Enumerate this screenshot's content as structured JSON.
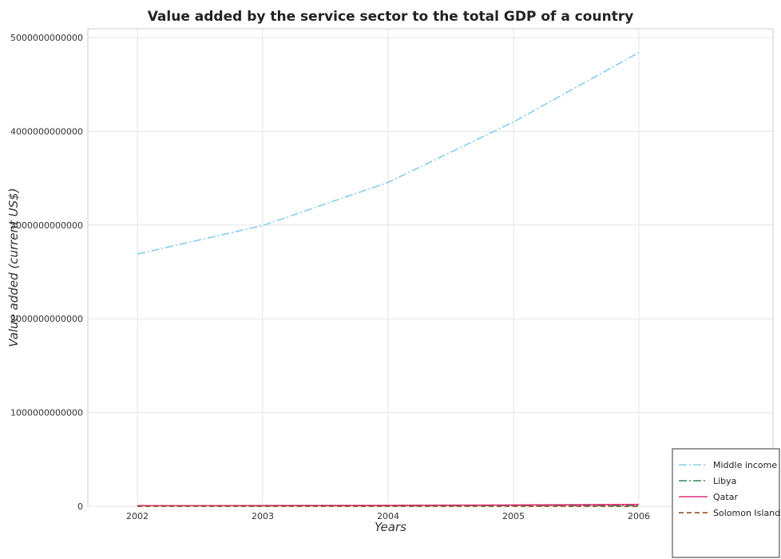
{
  "chart_data": {
    "type": "line",
    "title": "Value added by the service sector to the total GDP of a country",
    "xlabel": "Years",
    "ylabel": "Value added (current US$)",
    "categories": [
      "2002",
      "2003",
      "2004",
      "2005",
      "2006"
    ],
    "ylim": [
      0,
      5000000000000
    ],
    "yticks": [
      0,
      1000000000000,
      2000000000000,
      3000000000000,
      4000000000000,
      5000000000000
    ],
    "ytick_labels": [
      "0",
      "1000000000000",
      "2000000000000",
      "3000000000000",
      "4000000000000",
      "5000000000000"
    ],
    "grid": true,
    "legend_position": "bottom-right",
    "series": [
      {
        "name": "Middle income",
        "color": "#87ceeb",
        "dash": "dash-dot",
        "values": [
          2690000000000,
          2995000000000,
          3455000000000,
          4100000000000,
          4840000000000
        ]
      },
      {
        "name": "Libya",
        "color": "#2e8b57",
        "dash": "dash-dot",
        "values": [
          6500000000,
          5000000000,
          6000000000,
          6500000000,
          7500000000
        ]
      },
      {
        "name": "Qatar",
        "color": "#e0307a",
        "dash": "solid",
        "values": [
          7000000000,
          8000000000,
          10500000000,
          14000000000,
          20000000000
        ]
      },
      {
        "name": "Solomon Islands",
        "color": "#8b4513",
        "dash": "dashed",
        "values": [
          150000000,
          140000000,
          160000000,
          180000000,
          200000000
        ]
      }
    ]
  }
}
